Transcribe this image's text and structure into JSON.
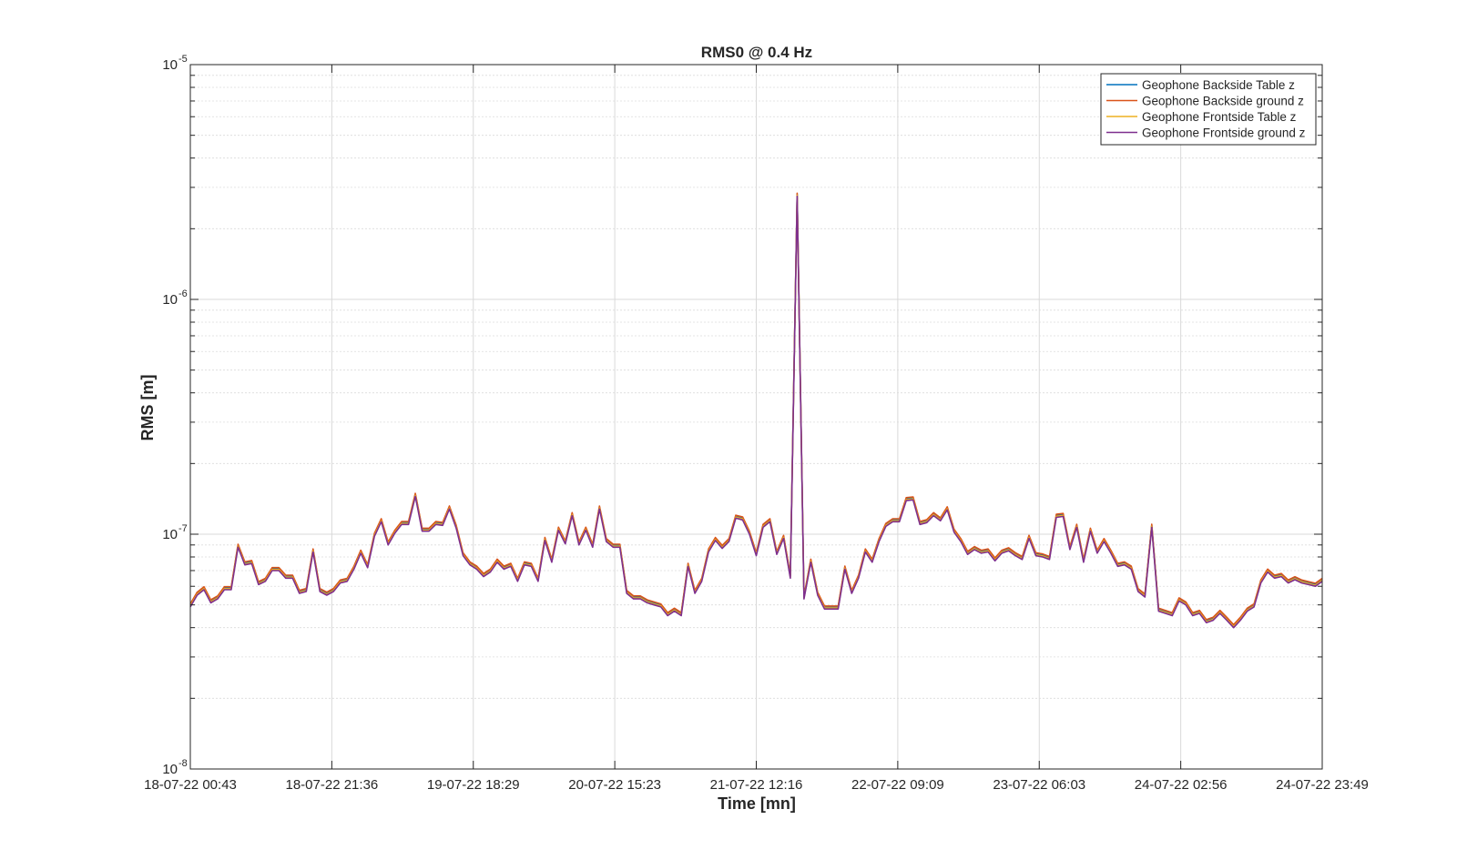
{
  "chart_data": {
    "type": "line",
    "title": "RMS0 @ 0.4 Hz",
    "xlabel": "Time [mn]",
    "ylabel": "RMS [m]",
    "yscale": "log",
    "ylim": [
      1e-08,
      1e-05
    ],
    "grid": true,
    "minor_grid": true,
    "legend_position": "top-right",
    "xlim": [
      "18-07-22 00:43",
      "24-07-22 23:49"
    ],
    "x_ticks": [
      "18-07-22 00:43",
      "18-07-22 21:36",
      "19-07-22 18:29",
      "20-07-22 15:23",
      "21-07-22 12:16",
      "22-07-22 09:09",
      "23-07-22 06:03",
      "24-07-22 02:56",
      "24-07-22 23:49"
    ],
    "y_ticks": [
      {
        "base": "10",
        "exp": "-8",
        "value": 1e-08
      },
      {
        "base": "10",
        "exp": "-7",
        "value": 1e-07
      },
      {
        "base": "10",
        "exp": "-6",
        "value": 1e-06
      },
      {
        "base": "10",
        "exp": "-5",
        "value": 1e-05
      }
    ],
    "x_sampling": "165 equally spaced samples from 18-07-22 00:43 to 24-07-22 23:49",
    "base_values": [
      4.9e-08,
      5.5e-08,
      5.8e-08,
      5.1e-08,
      5.3e-08,
      5.8e-08,
      5.8e-08,
      8.8e-08,
      7.4e-08,
      7.5e-08,
      6.1e-08,
      6.3e-08,
      7e-08,
      7e-08,
      6.5e-08,
      6.5e-08,
      5.6e-08,
      5.7e-08,
      8.4e-08,
      5.7e-08,
      5.5e-08,
      5.7e-08,
      6.2e-08,
      6.3e-08,
      7.1e-08,
      8.3e-08,
      7.2e-08,
      9.8e-08,
      1.13e-07,
      9e-08,
      1.01e-07,
      1.1e-07,
      1.1e-07,
      1.45e-07,
      1.03e-07,
      1.03e-07,
      1.1e-07,
      1.09e-07,
      1.28e-07,
      1.06e-07,
      8.1e-08,
      7.4e-08,
      7.1e-08,
      6.6e-08,
      6.9e-08,
      7.6e-08,
      7.1e-08,
      7.3e-08,
      6.3e-08,
      7.4e-08,
      7.3e-08,
      6.3e-08,
      9.4e-08,
      7.6e-08,
      1.04e-07,
      9.1e-08,
      1.2e-07,
      9e-08,
      1.04e-07,
      8.8e-08,
      1.28e-07,
      9.3e-08,
      8.8e-08,
      8.8e-08,
      5.6e-08,
      5.3e-08,
      5.3e-08,
      5.1e-08,
      5e-08,
      4.9e-08,
      4.5e-08,
      4.7e-08,
      4.5e-08,
      7.3e-08,
      5.6e-08,
      6.3e-08,
      8.4e-08,
      9.4e-08,
      8.7e-08,
      9.3e-08,
      1.17e-07,
      1.15e-07,
      1e-07,
      8.1e-08,
      1.07e-07,
      1.13e-07,
      8.2e-08,
      9.6e-08,
      6.5e-08,
      2.75e-06,
      5.3e-08,
      7.6e-08,
      5.5e-08,
      4.8e-08,
      4.8e-08,
      4.8e-08,
      7.1e-08,
      5.6e-08,
      6.5e-08,
      8.4e-08,
      7.6e-08,
      9.3e-08,
      1.08e-07,
      1.13e-07,
      1.13e-07,
      1.39e-07,
      1.4e-07,
      1.1e-07,
      1.12e-07,
      1.2e-07,
      1.14e-07,
      1.27e-07,
      1.02e-07,
      9.3e-08,
      8.2e-08,
      8.6e-08,
      8.3e-08,
      8.4e-08,
      7.7e-08,
      8.3e-08,
      8.5e-08,
      8.1e-08,
      7.8e-08,
      9.6e-08,
      8.1e-08,
      8e-08,
      7.8e-08,
      1.18e-07,
      1.19e-07,
      8.6e-08,
      1.07e-07,
      7.6e-08,
      1.03e-07,
      8.3e-08,
      9.3e-08,
      8.3e-08,
      7.3e-08,
      7.4e-08,
      7.1e-08,
      5.7e-08,
      5.4e-08,
      1.07e-07,
      4.7e-08,
      4.6e-08,
      4.5e-08,
      5.2e-08,
      5e-08,
      4.5e-08,
      4.6e-08,
      4.2e-08,
      4.3e-08,
      4.6e-08,
      4.3e-08,
      4e-08,
      4.3e-08,
      4.7e-08,
      4.9e-08,
      6.2e-08,
      6.9e-08,
      6.5e-08,
      6.6e-08,
      6.2e-08,
      6.4e-08,
      6.2e-08,
      6.1e-08,
      6e-08,
      6.3e-08
    ],
    "series": [
      {
        "name": "Geophone Backside Table z",
        "color": "#0072BD",
        "scale": 1.02
      },
      {
        "name": "Geophone Backside ground z",
        "color": "#D95319",
        "scale": 1.03
      },
      {
        "name": "Geophone Frontside Table z",
        "color": "#EDB120",
        "scale": 1.01
      },
      {
        "name": "Geophone Frontside ground z",
        "color": "#7E2F8E",
        "scale": 1.0
      }
    ]
  }
}
